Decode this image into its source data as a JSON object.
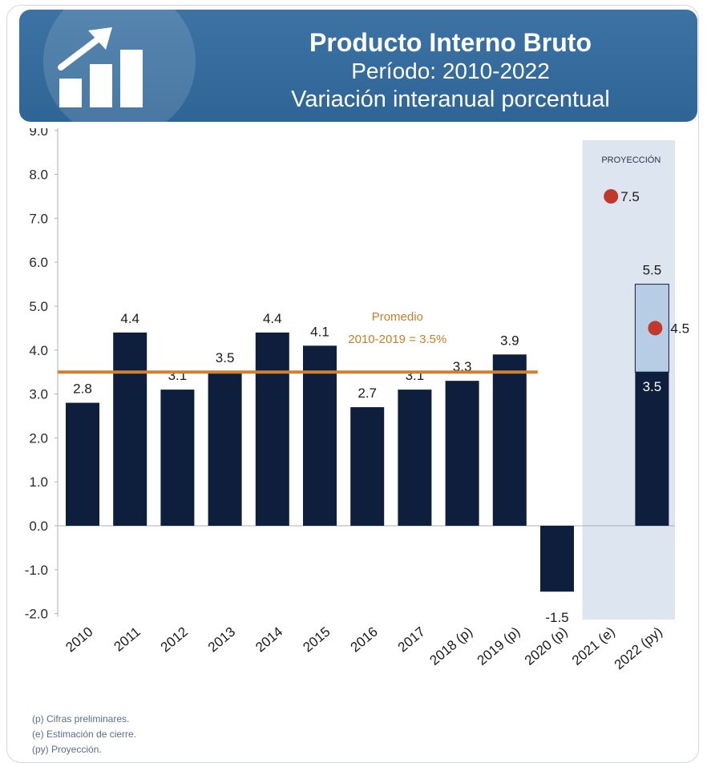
{
  "header": {
    "title": "Producto Interno Bruto",
    "period": "Período: 2010-2022",
    "subtitle": "Variación interanual porcentual",
    "logo_icon": "growth-bars-arrow-icon"
  },
  "chart_data": {
    "type": "bar",
    "categories": [
      "2010",
      "2011",
      "2012",
      "2013",
      "2014",
      "2015",
      "2016",
      "2017",
      "2018 (p)",
      "2019 (p)",
      "2020 (p)",
      "2021 (e)",
      "2022 (py)"
    ],
    "values": [
      2.8,
      4.4,
      3.1,
      3.5,
      4.4,
      4.1,
      2.7,
      3.1,
      3.3,
      3.9,
      -1.5,
      null,
      3.5
    ],
    "value_labels": [
      "2.8",
      "4.4",
      "3.1",
      "3.5",
      "4.4",
      "4.1",
      "2.7",
      "3.1",
      "3.3",
      "3.9",
      "-1.5",
      "",
      "3.5"
    ],
    "ylim": [
      -2.0,
      9.0
    ],
    "yticks": [
      "9.0",
      "8.0",
      "7.0",
      "6.0",
      "5.0",
      "4.0",
      "3.0",
      "2.0",
      "1.0",
      "0.0",
      "-1.0",
      "-2.0"
    ],
    "grid": false,
    "average_line": {
      "value": 3.5,
      "label_line1": "Promedio",
      "label_line2": "2010-2019 = 3.5%"
    },
    "projection_region": {
      "label": "PROYECCIÓN",
      "categories": [
        "2021 (e)",
        "2022 (py)"
      ]
    },
    "projection_range": {
      "category": "2022 (py)",
      "low": 3.5,
      "high": 5.5,
      "label": "5.5"
    },
    "projection_points": [
      {
        "category": "2021 (e)",
        "value": 7.5,
        "label": "7.5"
      },
      {
        "category": "2022 (py)",
        "value": 4.5,
        "label": "4.5"
      }
    ],
    "colors": {
      "bar": "#0e1e3d",
      "average": "#d0812f",
      "average_text": "#c47f2a",
      "projection_bg": "#dde5f0",
      "range_fill": "#b7cde6",
      "point": "#c0392b"
    }
  },
  "notes": [
    "(p) Cifras preliminares.",
    "(e) Estimación de cierre.",
    "(py) Proyección."
  ]
}
